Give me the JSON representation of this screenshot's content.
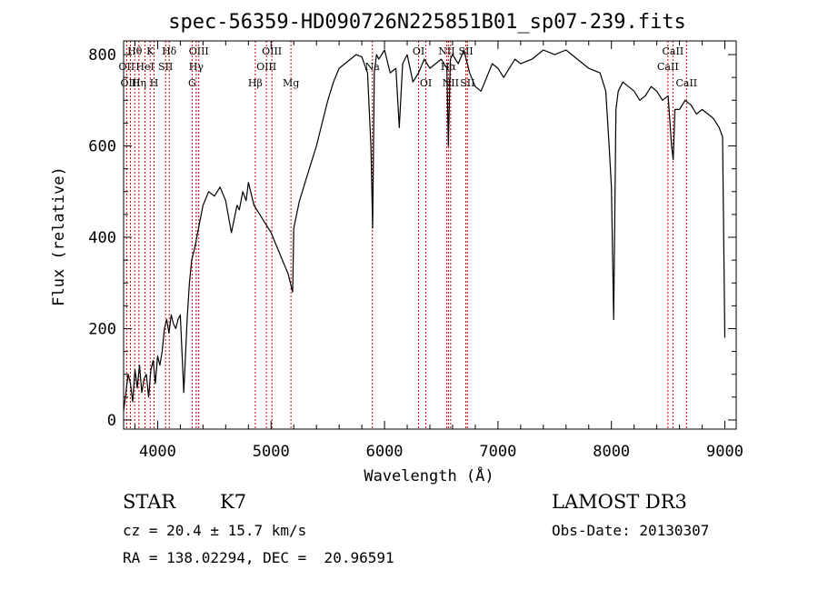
{
  "chart_data": {
    "type": "line",
    "title": "spec-56359-HD090726N225851B01_sp07-239.fits",
    "xlabel": "Wavelength (Å)",
    "ylabel": "Flux (relative)",
    "xlim": [
      3700,
      9100
    ],
    "ylim": [
      -20,
      830
    ],
    "xticks": [
      4000,
      5000,
      6000,
      7000,
      8000,
      9000
    ],
    "yticks": [
      0,
      200,
      400,
      600,
      800
    ],
    "grid": false,
    "colors": {
      "line": "#000000",
      "markers": "#cc0000"
    },
    "series": [
      {
        "x": [
          3700,
          3720,
          3740,
          3760,
          3780,
          3800,
          3820,
          3840,
          3860,
          3880,
          3900,
          3920,
          3940,
          3960,
          3980,
          4000,
          4020,
          4040,
          4060,
          4080,
          4100,
          4120,
          4140,
          4160,
          4180,
          4200,
          4230,
          4260,
          4280,
          4300,
          4330,
          4360,
          4400,
          4450,
          4500,
          4550,
          4600,
          4650,
          4700,
          4720,
          4750,
          4780,
          4800,
          4850,
          4900,
          4950,
          5000,
          5050,
          5100,
          5150,
          5170,
          5190,
          5200,
          5250,
          5300,
          5350,
          5400,
          5450,
          5500,
          5550,
          5600,
          5650,
          5700,
          5750,
          5800,
          5850,
          5880,
          5895,
          5910,
          5930,
          5950,
          6000,
          6050,
          6100,
          6130,
          6160,
          6200,
          6250,
          6300,
          6350,
          6400,
          6450,
          6500,
          6550,
          6563,
          6580,
          6600,
          6650,
          6700,
          6750,
          6800,
          6850,
          6900,
          6950,
          7000,
          7050,
          7100,
          7150,
          7200,
          7300,
          7400,
          7500,
          7600,
          7700,
          7800,
          7900,
          7950,
          7980,
          8000,
          8020,
          8040,
          8060,
          8100,
          8150,
          8200,
          8250,
          8300,
          8350,
          8400,
          8450,
          8500,
          8530,
          8545,
          8560,
          8600,
          8650,
          8700,
          8750,
          8800,
          8850,
          8900,
          8950,
          8980,
          9000
        ],
        "y": [
          20,
          60,
          100,
          80,
          40,
          110,
          70,
          120,
          60,
          90,
          100,
          50,
          110,
          130,
          80,
          140,
          120,
          150,
          200,
          220,
          190,
          230,
          210,
          200,
          220,
          230,
          60,
          220,
          300,
          350,
          380,
          420,
          470,
          500,
          490,
          510,
          480,
          410,
          470,
          460,
          500,
          480,
          520,
          470,
          450,
          430,
          410,
          380,
          350,
          320,
          300,
          280,
          420,
          480,
          520,
          560,
          600,
          650,
          700,
          740,
          770,
          780,
          790,
          800,
          795,
          760,
          600,
          420,
          760,
          800,
          790,
          810,
          760,
          770,
          640,
          780,
          800,
          740,
          760,
          790,
          770,
          780,
          790,
          770,
          600,
          790,
          800,
          780,
          810,
          760,
          730,
          720,
          750,
          780,
          770,
          750,
          770,
          790,
          780,
          790,
          810,
          800,
          810,
          790,
          770,
          760,
          720,
          600,
          510,
          220,
          680,
          720,
          740,
          730,
          720,
          700,
          710,
          730,
          720,
          700,
          710,
          600,
          570,
          680,
          680,
          700,
          690,
          670,
          680,
          670,
          660,
          640,
          620,
          180
        ]
      }
    ],
    "line_markers": [
      {
        "label": "Hδ",
        "x": 4102,
        "row": 1
      },
      {
        "label": "OII",
        "x": 3727,
        "row": 2
      },
      {
        "label": "OIII",
        "x": 3760,
        "row": 3
      },
      {
        "label": "Hθ",
        "x": 3798,
        "row": 1
      },
      {
        "label": "K",
        "x": 3934,
        "row": 1
      },
      {
        "label": "HeI",
        "x": 3889,
        "row": 2
      },
      {
        "label": "SII",
        "x": 4070,
        "row": 2
      },
      {
        "label": "Hη",
        "x": 3835,
        "row": 3
      },
      {
        "label": "H",
        "x": 3969,
        "row": 3
      },
      {
        "label": "OIII",
        "x": 4363,
        "row": 1
      },
      {
        "label": "Hγ",
        "x": 4340,
        "row": 2
      },
      {
        "label": "G",
        "x": 4304,
        "row": 3
      },
      {
        "label": "OIII",
        "x": 5007,
        "row": 1
      },
      {
        "label": "OIII",
        "x": 4959,
        "row": 2
      },
      {
        "label": "Hβ",
        "x": 4861,
        "row": 3
      },
      {
        "label": "Mg",
        "x": 5175,
        "row": 3
      },
      {
        "label": "Na",
        "x": 5893,
        "row": 2
      },
      {
        "label": "OI",
        "x": 6300,
        "row": 1
      },
      {
        "label": "OI",
        "x": 6364,
        "row": 3
      },
      {
        "label": "NII",
        "x": 6548,
        "row": 1
      },
      {
        "label": "Hα",
        "x": 6563,
        "row": 2
      },
      {
        "label": "SII",
        "x": 6717,
        "row": 1
      },
      {
        "label": "NII",
        "x": 6583,
        "row": 3
      },
      {
        "label": "SII",
        "x": 6731,
        "row": 3
      },
      {
        "label": "CaII",
        "x": 8498,
        "row": 2
      },
      {
        "label": "CaII",
        "x": 8542,
        "row": 1
      },
      {
        "label": "CaII",
        "x": 8662,
        "row": 3
      }
    ]
  },
  "info": {
    "object_class": "STAR",
    "subclass": "K7",
    "redshift": "cz = 20.4 ± 15.7 km/s",
    "coords": "RA = 138.02294, DEC =  20.96591",
    "survey": "LAMOST DR3",
    "obs_date": "Obs-Date: 20130307"
  }
}
